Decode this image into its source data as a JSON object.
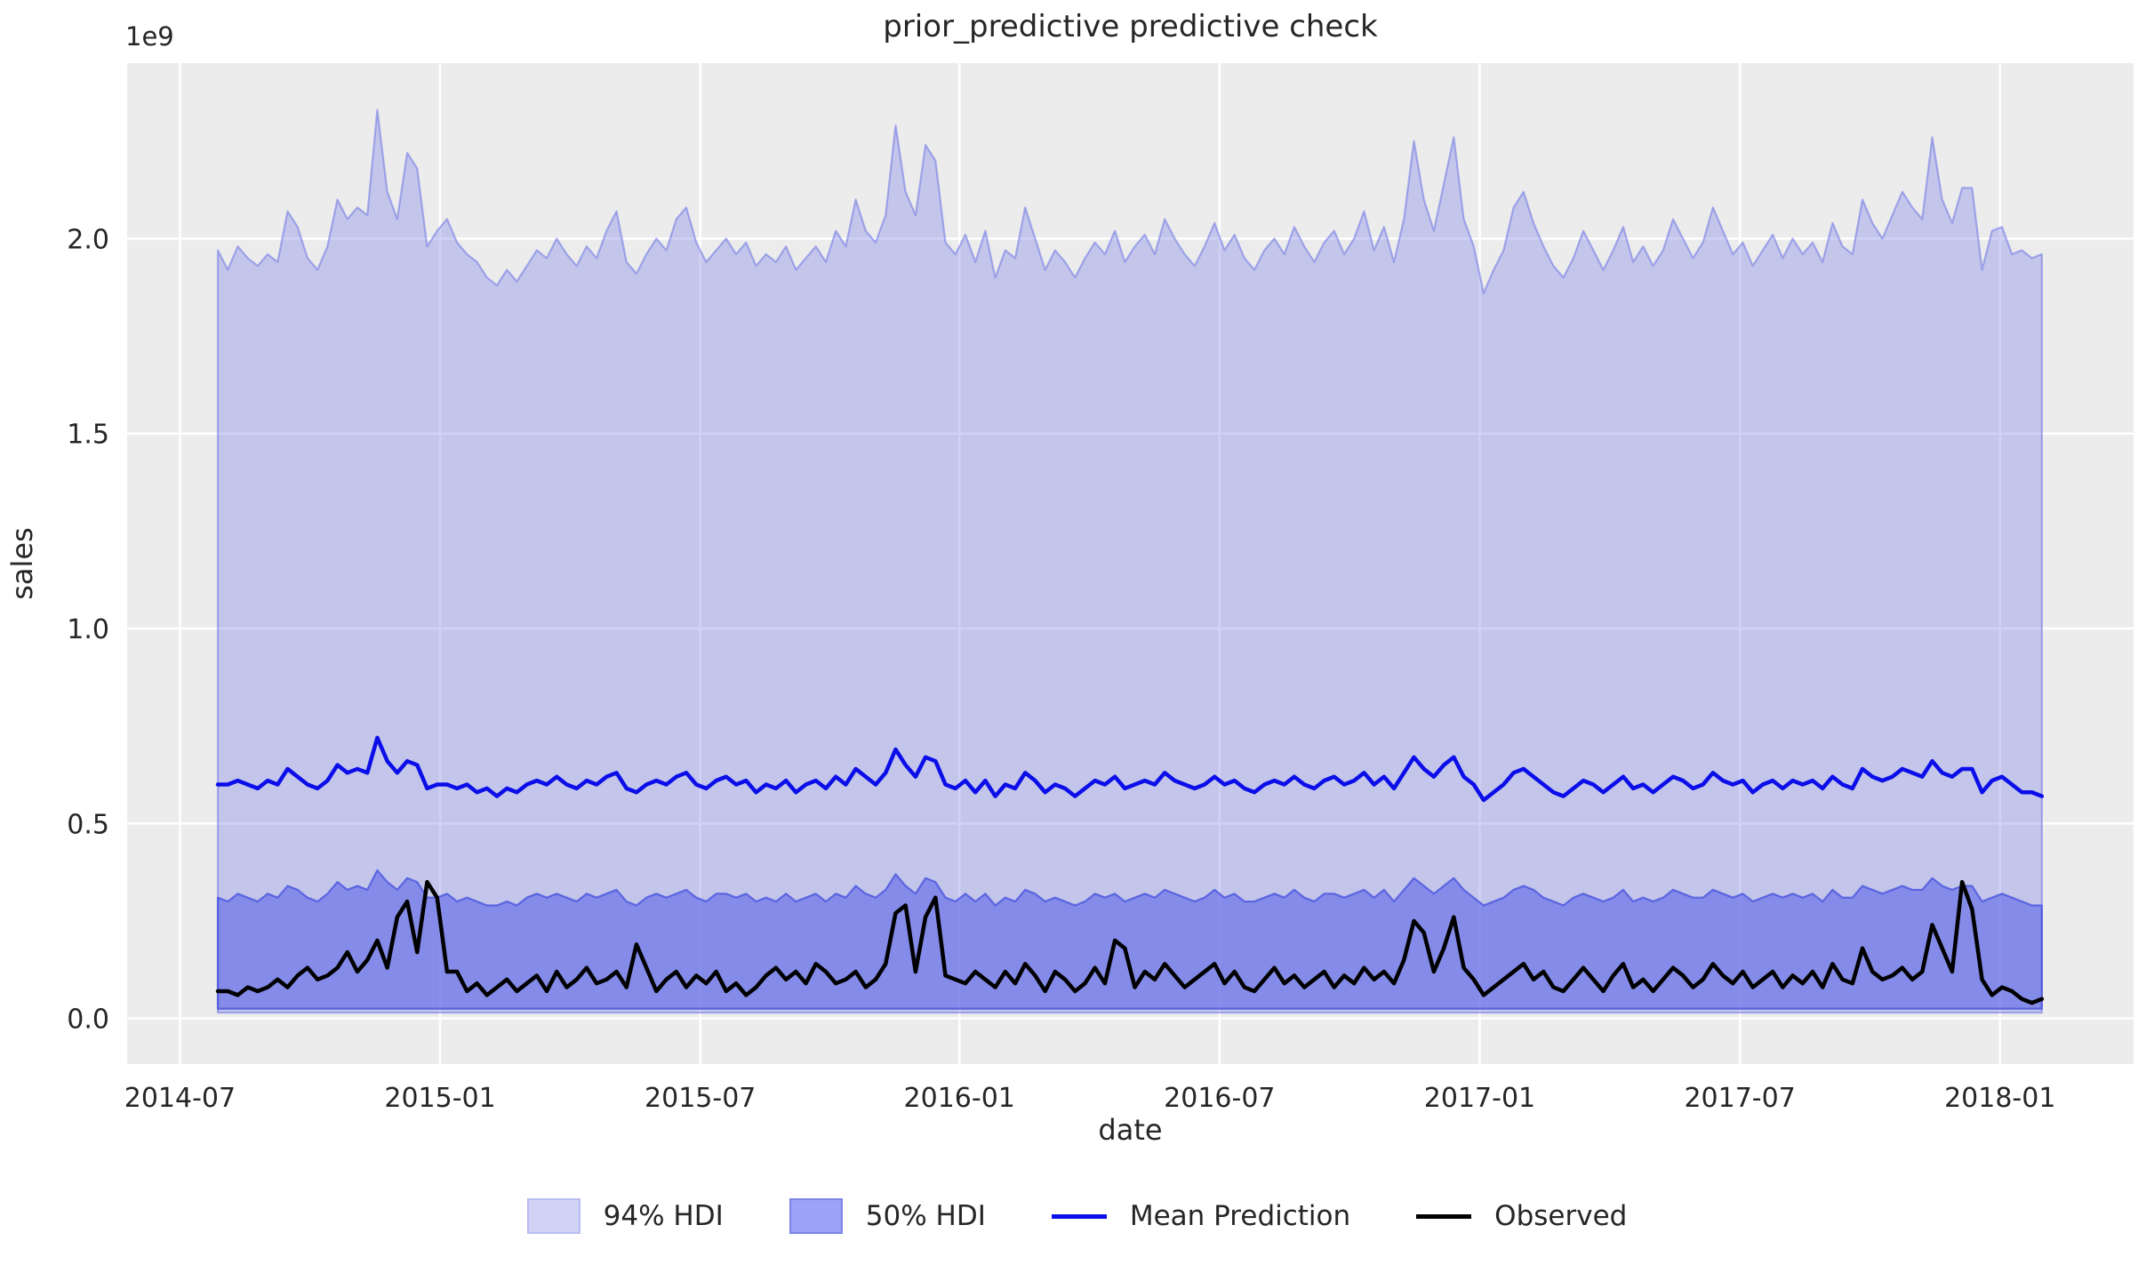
{
  "title": "prior_predictive predictive check",
  "axes": {
    "xlabel": "date",
    "ylabel": "sales",
    "offset_text": "1e9",
    "y_tick_labels": [
      "0.0",
      "0.5",
      "1.0",
      "1.5",
      "2.0"
    ],
    "x_tick_labels": [
      "2014-07",
      "2015-01",
      "2015-07",
      "2016-01",
      "2016-07",
      "2017-01",
      "2017-07",
      "2018-01"
    ]
  },
  "legend": {
    "items": [
      {
        "label": "94% HDI",
        "type": "patch"
      },
      {
        "label": "50% HDI",
        "type": "patch"
      },
      {
        "label": "Mean Prediction",
        "type": "line"
      },
      {
        "label": "Observed",
        "type": "line"
      }
    ]
  },
  "colors": {
    "plot_background": "#ececec",
    "grid": "#ffffff",
    "hdi94_fill": "rgba(130,136,232,0.38)",
    "hdi94_edge": "rgba(100,108,228,0.50)",
    "hdi50_fill": "rgba(90,100,230,0.60)",
    "hdi50_edge": "rgba(70,80,222,0.75)",
    "hdi94_legend_swatch": "#d0d2f6",
    "hdi94_legend_edge": "#b9bcf0",
    "hdi50_legend_swatch": "#9ca2f5",
    "hdi50_legend_edge": "#7d84e8",
    "mean_line": "#0b0ee8",
    "observed_line": "#000000",
    "text": "#262626"
  },
  "chart_data": {
    "type": "line",
    "title": "prior_predictive predictive check",
    "xlabel": "date",
    "ylabel": "sales",
    "y_scale_factor": "1e9",
    "grid": true,
    "legend_position": "bottom-center",
    "x_unit": "weekly points, index 0 ≈ 2014-07-27, index 183 ≈ 2018-01-28",
    "xlim_weeks": [
      -9.1,
      192.2
    ],
    "ylim": [
      -0.117,
      2.45
    ],
    "y_ticks": [
      0.0,
      0.5,
      1.0,
      1.5,
      2.0
    ],
    "x_ticks": [
      {
        "label": "2014-07",
        "week_pos": -3.8
      },
      {
        "label": "2015-01",
        "week_pos": 22.3
      },
      {
        "label": "2015-07",
        "week_pos": 48.4
      },
      {
        "label": "2016-01",
        "week_pos": 74.4
      },
      {
        "label": "2016-07",
        "week_pos": 100.5
      },
      {
        "label": "2017-01",
        "week_pos": 126.6
      },
      {
        "label": "2017-07",
        "week_pos": 152.7
      },
      {
        "label": "2018-01",
        "week_pos": 178.8
      }
    ],
    "series": [
      {
        "name": "94% HDI upper",
        "values": [
          1.97,
          1.92,
          1.98,
          1.95,
          1.93,
          1.96,
          1.94,
          2.07,
          2.03,
          1.95,
          1.92,
          1.98,
          2.1,
          2.05,
          2.08,
          2.06,
          2.33,
          2.12,
          2.05,
          2.22,
          2.18,
          1.98,
          2.02,
          2.05,
          1.99,
          1.96,
          1.94,
          1.9,
          1.88,
          1.92,
          1.89,
          1.93,
          1.97,
          1.95,
          2.0,
          1.96,
          1.93,
          1.98,
          1.95,
          2.02,
          2.07,
          1.94,
          1.91,
          1.96,
          2.0,
          1.97,
          2.05,
          2.08,
          1.99,
          1.94,
          1.97,
          2.0,
          1.96,
          1.99,
          1.93,
          1.96,
          1.94,
          1.98,
          1.92,
          1.95,
          1.98,
          1.94,
          2.02,
          1.98,
          2.1,
          2.02,
          1.99,
          2.06,
          2.29,
          2.12,
          2.06,
          2.24,
          2.2,
          1.99,
          1.96,
          2.01,
          1.94,
          2.02,
          1.9,
          1.97,
          1.95,
          2.08,
          2.0,
          1.92,
          1.97,
          1.94,
          1.9,
          1.95,
          1.99,
          1.96,
          2.02,
          1.94,
          1.98,
          2.01,
          1.96,
          2.05,
          2.0,
          1.96,
          1.93,
          1.98,
          2.04,
          1.97,
          2.01,
          1.95,
          1.92,
          1.97,
          2.0,
          1.96,
          2.03,
          1.98,
          1.94,
          1.99,
          2.02,
          1.96,
          2.0,
          2.07,
          1.97,
          2.03,
          1.94,
          2.05,
          2.25,
          2.1,
          2.02,
          2.14,
          2.26,
          2.05,
          1.98,
          1.86,
          1.92,
          1.97,
          2.08,
          2.12,
          2.04,
          1.98,
          1.93,
          1.9,
          1.95,
          2.02,
          1.97,
          1.92,
          1.97,
          2.03,
          1.94,
          1.98,
          1.93,
          1.97,
          2.05,
          2.0,
          1.95,
          1.99,
          2.08,
          2.02,
          1.96,
          1.99,
          1.93,
          1.97,
          2.01,
          1.95,
          2.0,
          1.96,
          1.99,
          1.94,
          2.04,
          1.98,
          1.96,
          2.1,
          2.04,
          2.0,
          2.06,
          2.12,
          2.08,
          2.05,
          2.26,
          2.1,
          2.04,
          2.13,
          2.13,
          1.92,
          2.02,
          2.03,
          1.96,
          1.97,
          1.95,
          1.96
        ]
      },
      {
        "name": "94% HDI lower (flat)",
        "constant_value": 0.015
      },
      {
        "name": "50% HDI upper",
        "values": [
          0.31,
          0.3,
          0.32,
          0.31,
          0.3,
          0.32,
          0.31,
          0.34,
          0.33,
          0.31,
          0.3,
          0.32,
          0.35,
          0.33,
          0.34,
          0.33,
          0.38,
          0.35,
          0.33,
          0.36,
          0.35,
          0.31,
          0.31,
          0.32,
          0.3,
          0.31,
          0.3,
          0.29,
          0.29,
          0.3,
          0.29,
          0.31,
          0.32,
          0.31,
          0.32,
          0.31,
          0.3,
          0.32,
          0.31,
          0.32,
          0.33,
          0.3,
          0.29,
          0.31,
          0.32,
          0.31,
          0.32,
          0.33,
          0.31,
          0.3,
          0.32,
          0.32,
          0.31,
          0.32,
          0.3,
          0.31,
          0.3,
          0.32,
          0.3,
          0.31,
          0.32,
          0.3,
          0.32,
          0.31,
          0.34,
          0.32,
          0.31,
          0.33,
          0.37,
          0.34,
          0.32,
          0.36,
          0.35,
          0.31,
          0.3,
          0.32,
          0.3,
          0.32,
          0.29,
          0.31,
          0.3,
          0.33,
          0.32,
          0.3,
          0.31,
          0.3,
          0.29,
          0.3,
          0.32,
          0.31,
          0.32,
          0.3,
          0.31,
          0.32,
          0.31,
          0.33,
          0.32,
          0.31,
          0.3,
          0.31,
          0.33,
          0.31,
          0.32,
          0.3,
          0.3,
          0.31,
          0.32,
          0.31,
          0.33,
          0.31,
          0.3,
          0.32,
          0.32,
          0.31,
          0.32,
          0.33,
          0.31,
          0.33,
          0.3,
          0.33,
          0.36,
          0.34,
          0.32,
          0.34,
          0.36,
          0.33,
          0.31,
          0.29,
          0.3,
          0.31,
          0.33,
          0.34,
          0.33,
          0.31,
          0.3,
          0.29,
          0.31,
          0.32,
          0.31,
          0.3,
          0.31,
          0.33,
          0.3,
          0.31,
          0.3,
          0.31,
          0.33,
          0.32,
          0.31,
          0.31,
          0.33,
          0.32,
          0.31,
          0.32,
          0.3,
          0.31,
          0.32,
          0.31,
          0.32,
          0.31,
          0.32,
          0.3,
          0.33,
          0.31,
          0.31,
          0.34,
          0.33,
          0.32,
          0.33,
          0.34,
          0.33,
          0.33,
          0.36,
          0.34,
          0.33,
          0.34,
          0.34,
          0.3,
          0.31,
          0.32,
          0.31,
          0.3,
          0.29,
          0.29
        ]
      },
      {
        "name": "50% HDI lower (flat)",
        "constant_value": 0.025
      },
      {
        "name": "Mean Prediction",
        "values": [
          0.6,
          0.6,
          0.61,
          0.6,
          0.59,
          0.61,
          0.6,
          0.64,
          0.62,
          0.6,
          0.59,
          0.61,
          0.65,
          0.63,
          0.64,
          0.63,
          0.72,
          0.66,
          0.63,
          0.66,
          0.65,
          0.59,
          0.6,
          0.6,
          0.59,
          0.6,
          0.58,
          0.59,
          0.57,
          0.59,
          0.58,
          0.6,
          0.61,
          0.6,
          0.62,
          0.6,
          0.59,
          0.61,
          0.6,
          0.62,
          0.63,
          0.59,
          0.58,
          0.6,
          0.61,
          0.6,
          0.62,
          0.63,
          0.6,
          0.59,
          0.61,
          0.62,
          0.6,
          0.61,
          0.58,
          0.6,
          0.59,
          0.61,
          0.58,
          0.6,
          0.61,
          0.59,
          0.62,
          0.6,
          0.64,
          0.62,
          0.6,
          0.63,
          0.69,
          0.65,
          0.62,
          0.67,
          0.66,
          0.6,
          0.59,
          0.61,
          0.58,
          0.61,
          0.57,
          0.6,
          0.59,
          0.63,
          0.61,
          0.58,
          0.6,
          0.59,
          0.57,
          0.59,
          0.61,
          0.6,
          0.62,
          0.59,
          0.6,
          0.61,
          0.6,
          0.63,
          0.61,
          0.6,
          0.59,
          0.6,
          0.62,
          0.6,
          0.61,
          0.59,
          0.58,
          0.6,
          0.61,
          0.6,
          0.62,
          0.6,
          0.59,
          0.61,
          0.62,
          0.6,
          0.61,
          0.63,
          0.6,
          0.62,
          0.59,
          0.63,
          0.67,
          0.64,
          0.62,
          0.65,
          0.67,
          0.62,
          0.6,
          0.56,
          0.58,
          0.6,
          0.63,
          0.64,
          0.62,
          0.6,
          0.58,
          0.57,
          0.59,
          0.61,
          0.6,
          0.58,
          0.6,
          0.62,
          0.59,
          0.6,
          0.58,
          0.6,
          0.62,
          0.61,
          0.59,
          0.6,
          0.63,
          0.61,
          0.6,
          0.61,
          0.58,
          0.6,
          0.61,
          0.59,
          0.61,
          0.6,
          0.61,
          0.59,
          0.62,
          0.6,
          0.59,
          0.64,
          0.62,
          0.61,
          0.62,
          0.64,
          0.63,
          0.62,
          0.66,
          0.63,
          0.62,
          0.64,
          0.64,
          0.58,
          0.61,
          0.62,
          0.6,
          0.58,
          0.58,
          0.57
        ]
      },
      {
        "name": "Observed",
        "values": [
          0.07,
          0.07,
          0.06,
          0.08,
          0.07,
          0.08,
          0.1,
          0.08,
          0.11,
          0.13,
          0.1,
          0.11,
          0.13,
          0.17,
          0.12,
          0.15,
          0.2,
          0.13,
          0.26,
          0.3,
          0.17,
          0.35,
          0.31,
          0.12,
          0.12,
          0.07,
          0.09,
          0.06,
          0.08,
          0.1,
          0.07,
          0.09,
          0.11,
          0.07,
          0.12,
          0.08,
          0.1,
          0.13,
          0.09,
          0.1,
          0.12,
          0.08,
          0.19,
          0.13,
          0.07,
          0.1,
          0.12,
          0.08,
          0.11,
          0.09,
          0.12,
          0.07,
          0.09,
          0.06,
          0.08,
          0.11,
          0.13,
          0.1,
          0.12,
          0.09,
          0.14,
          0.12,
          0.09,
          0.1,
          0.12,
          0.08,
          0.1,
          0.14,
          0.27,
          0.29,
          0.12,
          0.26,
          0.31,
          0.11,
          0.1,
          0.09,
          0.12,
          0.1,
          0.08,
          0.12,
          0.09,
          0.14,
          0.11,
          0.07,
          0.12,
          0.1,
          0.07,
          0.09,
          0.13,
          0.09,
          0.2,
          0.18,
          0.08,
          0.12,
          0.1,
          0.14,
          0.11,
          0.08,
          0.1,
          0.12,
          0.14,
          0.09,
          0.12,
          0.08,
          0.07,
          0.1,
          0.13,
          0.09,
          0.11,
          0.08,
          0.1,
          0.12,
          0.08,
          0.11,
          0.09,
          0.13,
          0.1,
          0.12,
          0.09,
          0.15,
          0.25,
          0.22,
          0.12,
          0.18,
          0.26,
          0.13,
          0.1,
          0.06,
          0.08,
          0.1,
          0.12,
          0.14,
          0.1,
          0.12,
          0.08,
          0.07,
          0.1,
          0.13,
          0.1,
          0.07,
          0.11,
          0.14,
          0.08,
          0.1,
          0.07,
          0.1,
          0.13,
          0.11,
          0.08,
          0.1,
          0.14,
          0.11,
          0.09,
          0.12,
          0.08,
          0.1,
          0.12,
          0.08,
          0.11,
          0.09,
          0.12,
          0.08,
          0.14,
          0.1,
          0.09,
          0.18,
          0.12,
          0.1,
          0.11,
          0.13,
          0.1,
          0.12,
          0.24,
          0.18,
          0.12,
          0.35,
          0.28,
          0.1,
          0.06,
          0.08,
          0.07,
          0.05,
          0.04,
          0.05
        ]
      }
    ]
  }
}
